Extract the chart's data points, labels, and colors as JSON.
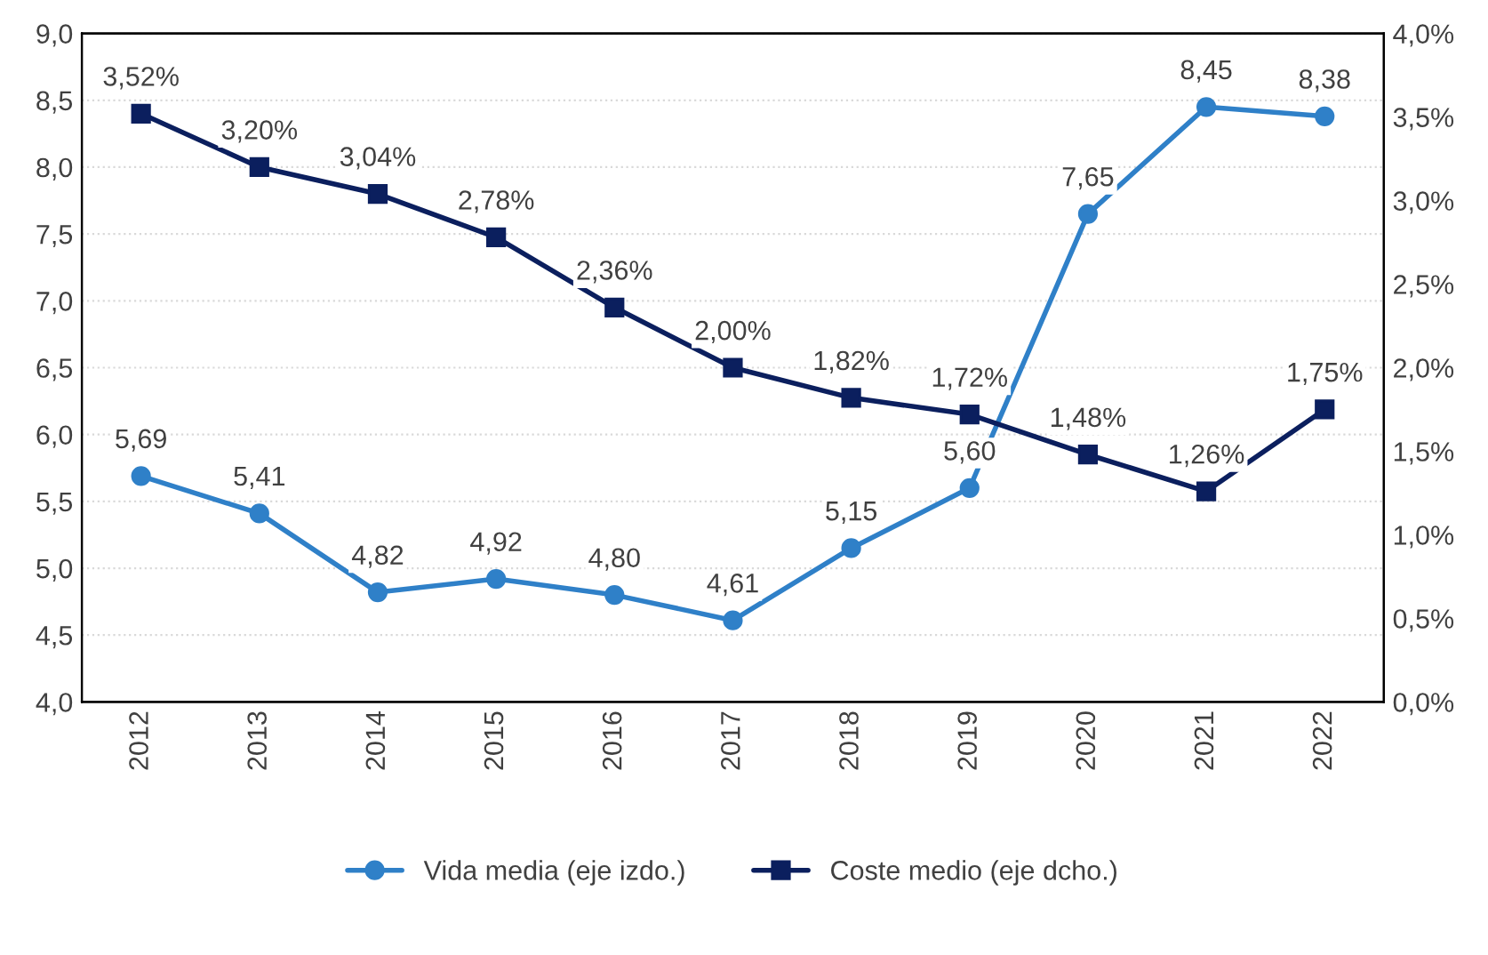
{
  "chart_data": {
    "type": "line",
    "categories": [
      "2012",
      "2013",
      "2014",
      "2015",
      "2016",
      "2017",
      "2018",
      "2019",
      "2020",
      "2021",
      "2022"
    ],
    "series": [
      {
        "name": "Vida media (eje izdo.)",
        "color": "#2f80c8",
        "marker": "circle",
        "values": [
          5.69,
          5.41,
          4.82,
          4.92,
          4.8,
          4.61,
          5.15,
          5.6,
          7.65,
          8.45,
          8.38
        ],
        "value_labels": [
          "5,69",
          "5,41",
          "4,82",
          "4,92",
          "4,80",
          "4,61",
          "5,15",
          "5,60",
          "7,65",
          "8,45",
          "8,38"
        ]
      },
      {
        "name": "Coste medio (eje dcho.)",
        "color": "#0b1f5e",
        "marker": "square",
        "axis": "y2",
        "values": [
          3.52,
          3.2,
          3.04,
          2.78,
          2.36,
          2.0,
          1.82,
          1.72,
          1.48,
          1.26,
          1.75
        ],
        "value_labels": [
          "3,52%",
          "3,20%",
          "3,04%",
          "2,78%",
          "2,36%",
          "2,00%",
          "1,82%",
          "1,72%",
          "1,48%",
          "1,26%",
          "1,75%"
        ]
      }
    ],
    "ylim": [
      4.0,
      9.0
    ],
    "yticks": [
      {
        "value": 4.0,
        "label": "4,0"
      },
      {
        "value": 4.5,
        "label": "4,5"
      },
      {
        "value": 5.0,
        "label": "5,0"
      },
      {
        "value": 5.5,
        "label": "5,5"
      },
      {
        "value": 6.0,
        "label": "6,0"
      },
      {
        "value": 6.5,
        "label": "6,5"
      },
      {
        "value": 7.0,
        "label": "7,0"
      },
      {
        "value": 7.5,
        "label": "7,5"
      },
      {
        "value": 8.0,
        "label": "8,0"
      },
      {
        "value": 8.5,
        "label": "8,5"
      },
      {
        "value": 9.0,
        "label": "9,0"
      }
    ],
    "y2lim": [
      0.0,
      4.0
    ],
    "y2ticks": [
      {
        "value": 0.0,
        "label": "0,0%"
      },
      {
        "value": 0.5,
        "label": "0,5%"
      },
      {
        "value": 1.0,
        "label": "1,0%"
      },
      {
        "value": 1.5,
        "label": "1,5%"
      },
      {
        "value": 2.0,
        "label": "2,0%"
      },
      {
        "value": 2.5,
        "label": "2,5%"
      },
      {
        "value": 3.0,
        "label": "3,0%"
      },
      {
        "value": 3.5,
        "label": "3,5%"
      },
      {
        "value": 4.0,
        "label": "4,0%"
      }
    ],
    "grid": "y",
    "legend": "bottom",
    "line_style": "solid"
  }
}
